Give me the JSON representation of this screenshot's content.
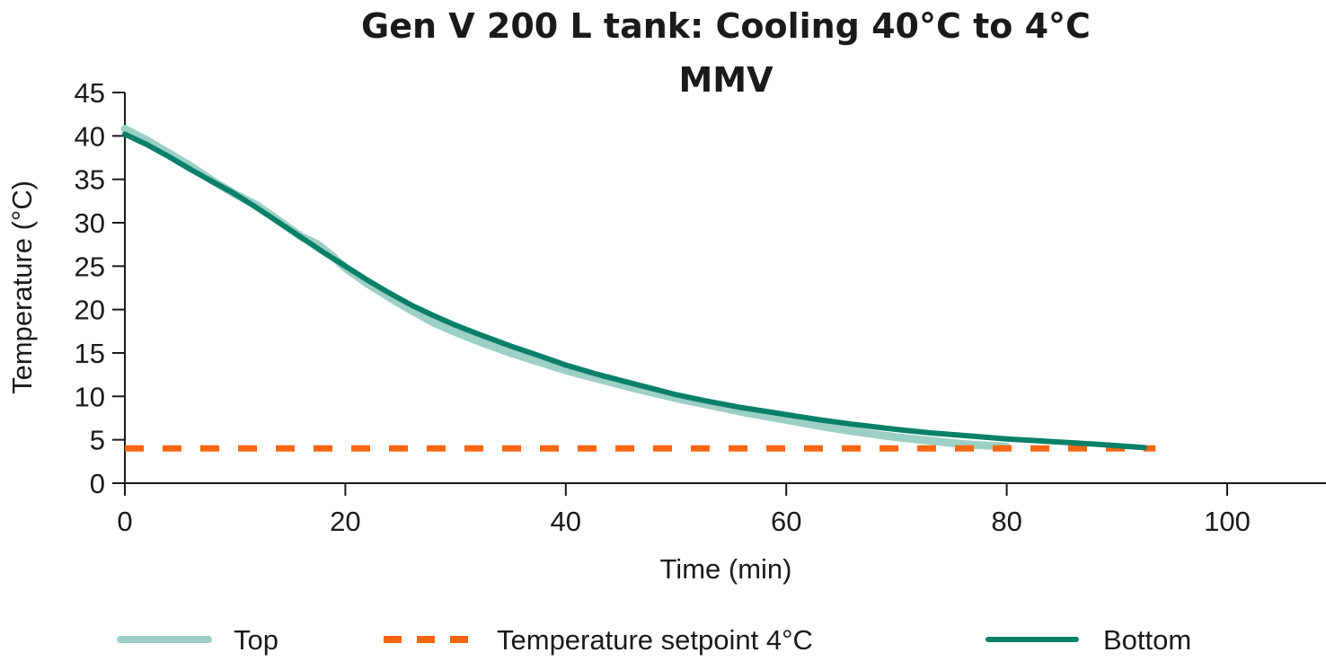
{
  "chart_data": {
    "type": "line",
    "title": "Gen V 200 L tank: Cooling 40°C to 4°C",
    "subtitle": "MMV",
    "xlabel": "Time (min)",
    "ylabel": "Temperature (°C)",
    "xlim": [
      0,
      109
    ],
    "ylim": [
      0,
      45
    ],
    "x_ticks": [
      0,
      20,
      40,
      60,
      80,
      100
    ],
    "y_ticks": [
      0,
      5,
      10,
      15,
      20,
      25,
      30,
      35,
      40,
      45
    ],
    "grid": false,
    "legend_position": "bottom",
    "colors": {
      "top": "#9dd0c4",
      "bottom": "#08806a",
      "setpoint": "#f96611",
      "axis": "#1a1a1a"
    },
    "series": [
      {
        "name": "Top",
        "style": "solid-light",
        "x": [
          0,
          2,
          4,
          6,
          8,
          10,
          12,
          14,
          16,
          17.5,
          18.5,
          20,
          22,
          24,
          26,
          28,
          30,
          32,
          35,
          38,
          40,
          43,
          46,
          50,
          53,
          56,
          60,
          63,
          66,
          70,
          73,
          76,
          80
        ],
        "y": [
          40.8,
          39.5,
          38.0,
          36.5,
          34.8,
          33.3,
          32.0,
          30.2,
          28.4,
          27.5,
          26.5,
          24.8,
          23.0,
          21.4,
          19.9,
          18.5,
          17.4,
          16.4,
          15.0,
          13.8,
          13.0,
          12.0,
          11.0,
          9.8,
          9.0,
          8.2,
          7.3,
          6.6,
          6.0,
          5.3,
          4.9,
          4.5,
          4.2
        ]
      },
      {
        "name": "Temperature setpoint 4°C",
        "style": "dashed",
        "x": [
          0,
          93.5
        ],
        "y": [
          4,
          4
        ]
      },
      {
        "name": "Bottom",
        "style": "solid-dark",
        "x": [
          0,
          2,
          4,
          6,
          8,
          10,
          12,
          14,
          16,
          18,
          20,
          22,
          24,
          26,
          28,
          30,
          32,
          35,
          38,
          40,
          43,
          46,
          50,
          53,
          56,
          60,
          63,
          66,
          70,
          73,
          76,
          80,
          84,
          88,
          92.5
        ],
        "y": [
          40.2,
          39.0,
          37.6,
          36.1,
          34.7,
          33.3,
          31.7,
          30.0,
          28.3,
          26.6,
          25.0,
          23.4,
          21.9,
          20.5,
          19.3,
          18.2,
          17.2,
          15.8,
          14.5,
          13.6,
          12.5,
          11.5,
          10.2,
          9.4,
          8.7,
          7.9,
          7.3,
          6.8,
          6.2,
          5.8,
          5.5,
          5.1,
          4.8,
          4.5,
          4.1
        ]
      }
    ]
  }
}
